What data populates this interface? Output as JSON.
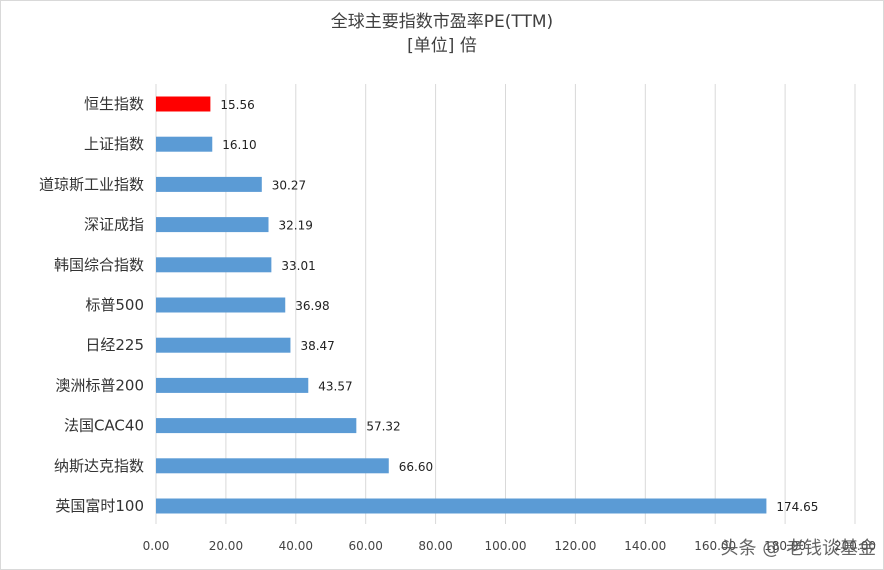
{
  "chart_data": {
    "type": "bar",
    "orientation": "horizontal",
    "title": "全球主要指数市盈率PE(TTM)",
    "subtitle": "[单位] 倍",
    "categories": [
      "恒生指数",
      "上证指数",
      "道琼斯工业指数",
      "深证成指",
      "韩国综合指数",
      "标普500",
      "日经225",
      "澳洲标普200",
      "法国CAC40",
      "纳斯达克指数",
      "英国富时100"
    ],
    "values": [
      15.56,
      16.1,
      30.27,
      32.19,
      33.01,
      36.98,
      38.47,
      43.57,
      57.32,
      66.6,
      174.65
    ],
    "value_labels": [
      "15.56",
      "16.10",
      "30.27",
      "32.19",
      "33.01",
      "36.98",
      "38.47",
      "43.57",
      "57.32",
      "66.60",
      "174.65"
    ],
    "bar_colors": [
      "#ff0000",
      "#5b9bd5",
      "#5b9bd5",
      "#5b9bd5",
      "#5b9bd5",
      "#5b9bd5",
      "#5b9bd5",
      "#5b9bd5",
      "#5b9bd5",
      "#5b9bd5",
      "#5b9bd5"
    ],
    "xlim": [
      0,
      200
    ],
    "x_ticks": [
      "0.00",
      "20.00",
      "40.00",
      "60.00",
      "80.00",
      "100.00",
      "120.00",
      "140.00",
      "160.00",
      "180.00",
      "200.00"
    ],
    "grid": "vertical",
    "legend": "none"
  },
  "watermark": "头条 @ 老钱谈基金"
}
